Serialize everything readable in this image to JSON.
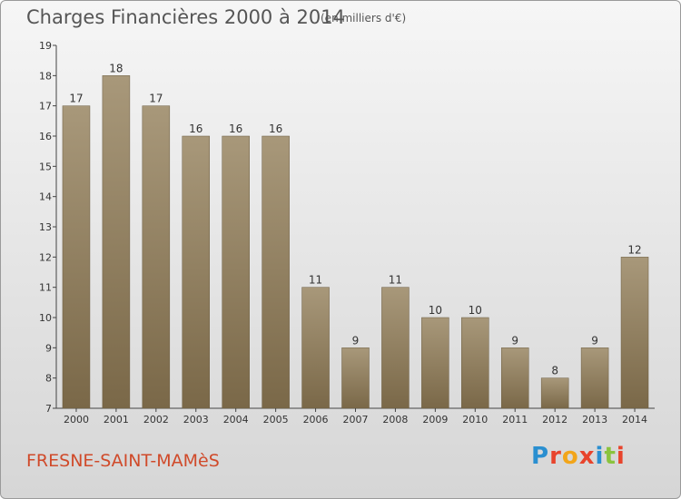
{
  "header": {
    "title": "Charges Financières 2000 à 2014",
    "subtitle": "(en milliers d'€)"
  },
  "footer": {
    "town": "FRESNE-SAINT-MAMèS",
    "logo_text": "Proxiti",
    "logo_colors": [
      "#2a8fd0",
      "#e8442c",
      "#f2a51a",
      "#e8442c",
      "#2a8fd0",
      "#8ac33e",
      "#e8442c"
    ]
  },
  "colors": {
    "bar_top": "#a8987a",
    "bar_bottom": "#7a6848",
    "town": "#d04a2a",
    "axis": "#444444"
  },
  "chart_data": {
    "type": "bar",
    "title": "Charges Financières 2000 à 2014",
    "subtitle": "(en milliers d'€)",
    "categories": [
      "2000",
      "2001",
      "2002",
      "2003",
      "2004",
      "2005",
      "2006",
      "2007",
      "2008",
      "2009",
      "2010",
      "2011",
      "2012",
      "2013",
      "2014"
    ],
    "values": [
      17,
      18,
      17,
      16,
      16,
      16,
      11,
      9,
      11,
      10,
      10,
      9,
      8,
      9,
      12
    ],
    "ylim": [
      7,
      19
    ],
    "yticks": [
      7,
      8,
      9,
      10,
      11,
      12,
      13,
      14,
      15,
      16,
      17,
      18,
      19
    ],
    "grid": false,
    "data_labels": true
  }
}
